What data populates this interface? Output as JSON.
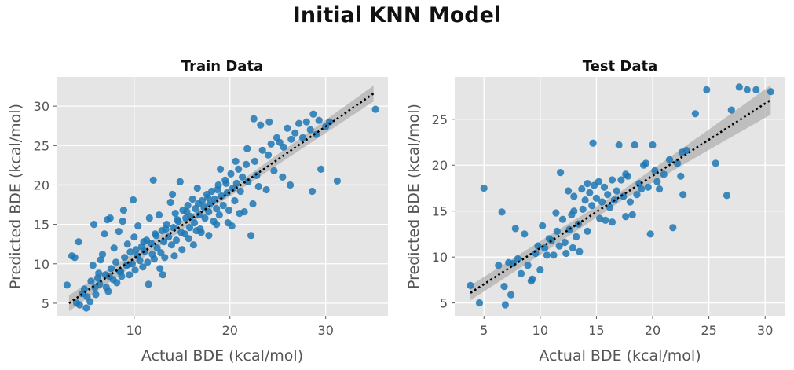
{
  "figure": {
    "title": "Initial KNN Model"
  },
  "chart_data": [
    {
      "type": "scatter",
      "title": "Train Data",
      "xlabel": "Actual BDE (kcal/mol)",
      "ylabel": "Predicted BDE (kcal/mol)",
      "xlim": [
        1.9,
        36.5
      ],
      "ylim": [
        3.4,
        33.7
      ],
      "xticks": [
        10,
        20,
        30
      ],
      "yticks": [
        5,
        10,
        15,
        20,
        25,
        30
      ],
      "grid": true,
      "regression": {
        "x0": 3.2,
        "y0": 5.0,
        "x1": 35.0,
        "y1": 31.6,
        "ci_start": 1.0,
        "ci_end": 1.0
      },
      "colors": {
        "points": "#1f77b4",
        "line": "#000000",
        "band": "#b0b0b0",
        "background": "#e5e5e5"
      },
      "points": [
        [
          3.0,
          7.3
        ],
        [
          3.5,
          11.0
        ],
        [
          3.8,
          10.8
        ],
        [
          4.0,
          5.0
        ],
        [
          4.2,
          12.8
        ],
        [
          4.3,
          4.8
        ],
        [
          4.6,
          6.2
        ],
        [
          4.8,
          6.8
        ],
        [
          5.0,
          4.4
        ],
        [
          5.1,
          5.8
        ],
        [
          5.4,
          5.2
        ],
        [
          5.5,
          7.8
        ],
        [
          5.7,
          9.8
        ],
        [
          5.8,
          15.0
        ],
        [
          6.0,
          6.1
        ],
        [
          6.2,
          8.2
        ],
        [
          6.4,
          7.4
        ],
        [
          6.5,
          10.5
        ],
        [
          6.7,
          11.2
        ],
        [
          6.9,
          13.8
        ],
        [
          7.0,
          8.6
        ],
        [
          7.1,
          7.0
        ],
        [
          7.3,
          6.5
        ],
        [
          7.5,
          15.8
        ],
        [
          7.6,
          9.4
        ],
        [
          7.8,
          8.0
        ],
        [
          7.9,
          12.0
        ],
        [
          8.1,
          10.2
        ],
        [
          8.2,
          7.6
        ],
        [
          8.4,
          14.1
        ],
        [
          8.5,
          9.0
        ],
        [
          8.7,
          8.4
        ],
        [
          8.9,
          16.8
        ],
        [
          9.0,
          10.8
        ],
        [
          9.2,
          9.8
        ],
        [
          9.3,
          12.5
        ],
        [
          9.5,
          8.6
        ],
        [
          9.6,
          11.5
        ],
        [
          9.8,
          10.0
        ],
        [
          10.0,
          13.4
        ],
        [
          10.1,
          9.2
        ],
        [
          10.3,
          11.0
        ],
        [
          10.4,
          14.8
        ],
        [
          10.6,
          10.4
        ],
        [
          10.8,
          12.2
        ],
        [
          10.9,
          9.6
        ],
        [
          11.1,
          11.6
        ],
        [
          11.3,
          13.0
        ],
        [
          11.4,
          10.2
        ],
        [
          11.6,
          15.8
        ],
        [
          11.8,
          12.6
        ],
        [
          11.9,
          11.2
        ],
        [
          12.1,
          10.6
        ],
        [
          12.3,
          13.6
        ],
        [
          12.4,
          12.0
        ],
        [
          12.6,
          16.2
        ],
        [
          12.8,
          11.4
        ],
        [
          12.9,
          14.2
        ],
        [
          13.1,
          12.8
        ],
        [
          13.2,
          10.8
        ],
        [
          13.4,
          15.0
        ],
        [
          13.6,
          13.4
        ],
        [
          13.8,
          17.8
        ],
        [
          13.9,
          12.4
        ],
        [
          14.1,
          14.6
        ],
        [
          14.3,
          16.4
        ],
        [
          14.4,
          13.0
        ],
        [
          14.6,
          15.4
        ],
        [
          14.8,
          20.4
        ],
        [
          14.9,
          14.0
        ],
        [
          15.1,
          16.8
        ],
        [
          15.3,
          13.8
        ],
        [
          15.4,
          15.8
        ],
        [
          15.6,
          17.4
        ],
        [
          15.8,
          14.6
        ],
        [
          15.9,
          16.0
        ],
        [
          16.1,
          18.2
        ],
        [
          16.3,
          15.2
        ],
        [
          16.4,
          17.0
        ],
        [
          16.6,
          19.6
        ],
        [
          16.8,
          16.2
        ],
        [
          16.9,
          14.4
        ],
        [
          17.1,
          18.0
        ],
        [
          17.3,
          17.2
        ],
        [
          17.4,
          15.8
        ],
        [
          17.6,
          18.8
        ],
        [
          17.8,
          16.6
        ],
        [
          17.9,
          17.6
        ],
        [
          18.1,
          19.2
        ],
        [
          18.3,
          15.4
        ],
        [
          18.4,
          18.2
        ],
        [
          18.6,
          17.0
        ],
        [
          18.8,
          20.0
        ],
        [
          18.9,
          16.2
        ],
        [
          19.1,
          18.6
        ],
        [
          19.3,
          17.4
        ],
        [
          19.5,
          20.6
        ],
        [
          19.7,
          19.0
        ],
        [
          19.9,
          16.8
        ],
        [
          20.1,
          21.4
        ],
        [
          20.3,
          19.6
        ],
        [
          20.5,
          18.0
        ],
        [
          20.7,
          20.2
        ],
        [
          20.9,
          22.0
        ],
        [
          21.1,
          19.2
        ],
        [
          21.3,
          21.0
        ],
        [
          21.5,
          16.6
        ],
        [
          21.7,
          22.6
        ],
        [
          21.9,
          20.4
        ],
        [
          22.2,
          13.6
        ],
        [
          22.4,
          17.6
        ],
        [
          22.6,
          23.0
        ],
        [
          22.8,
          21.2
        ],
        [
          23.0,
          19.8
        ],
        [
          23.4,
          24.4
        ],
        [
          23.8,
          19.4
        ],
        [
          24.0,
          23.8
        ],
        [
          24.3,
          25.2
        ],
        [
          24.6,
          21.8
        ],
        [
          24.9,
          26.0
        ],
        [
          25.2,
          25.4
        ],
        [
          25.6,
          24.8
        ],
        [
          26.0,
          27.2
        ],
        [
          26.4,
          25.8
        ],
        [
          26.8,
          26.6
        ],
        [
          27.2,
          27.8
        ],
        [
          27.6,
          26.0
        ],
        [
          28.0,
          28.0
        ],
        [
          28.4,
          27.0
        ],
        [
          28.7,
          29.0
        ],
        [
          29.0,
          26.4
        ],
        [
          29.3,
          28.2
        ],
        [
          29.5,
          22.0
        ],
        [
          30.0,
          27.4
        ],
        [
          30.4,
          28.0
        ],
        [
          22.5,
          28.4
        ],
        [
          23.2,
          27.6
        ],
        [
          24.1,
          28.0
        ],
        [
          25.5,
          21.0
        ],
        [
          26.3,
          20.0
        ],
        [
          28.6,
          19.2
        ],
        [
          31.2,
          20.5
        ],
        [
          35.2,
          29.6
        ],
        [
          20.6,
          23.0
        ],
        [
          21.8,
          24.6
        ],
        [
          17.8,
          13.6
        ],
        [
          16.5,
          14.2
        ],
        [
          14.0,
          18.8
        ],
        [
          12.0,
          20.6
        ],
        [
          9.9,
          18.1
        ],
        [
          8.8,
          15.4
        ],
        [
          7.2,
          15.6
        ],
        [
          11.5,
          7.4
        ],
        [
          13.0,
          8.6
        ],
        [
          15.0,
          11.8
        ],
        [
          16.2,
          12.4
        ],
        [
          18.6,
          15.0
        ],
        [
          19.8,
          15.2
        ],
        [
          20.2,
          14.8
        ],
        [
          6.3,
          8.8
        ],
        [
          5.9,
          7.0
        ],
        [
          7.4,
          8.4
        ],
        [
          8.6,
          9.0
        ],
        [
          9.4,
          9.9
        ],
        [
          10.2,
          11.8
        ],
        [
          11.0,
          12.8
        ],
        [
          12.2,
          13.8
        ],
        [
          13.3,
          14.4
        ],
        [
          14.5,
          15.6
        ],
        [
          15.5,
          16.6
        ],
        [
          16.7,
          17.6
        ],
        [
          17.7,
          18.4
        ],
        [
          18.7,
          19.4
        ],
        [
          19.6,
          20.2
        ],
        [
          12.7,
          9.4
        ],
        [
          14.2,
          11.0
        ],
        [
          15.7,
          13.2
        ],
        [
          17.0,
          14.0
        ],
        [
          21.0,
          16.4
        ],
        [
          19.0,
          22.0
        ]
      ]
    },
    {
      "type": "scatter",
      "title": "Test Data",
      "xlabel": "Actual BDE (kcal/mol)",
      "ylabel": "Predicted BDE (kcal/mol)",
      "xlim": [
        2.4,
        31.8
      ],
      "ylim": [
        3.6,
        29.6
      ],
      "xticks": [
        5,
        10,
        15,
        20,
        25,
        30
      ],
      "yticks": [
        5,
        10,
        15,
        20,
        25
      ],
      "grid": true,
      "regression": {
        "x0": 3.8,
        "y0": 6.1,
        "x1": 30.5,
        "y1": 27.1,
        "ci_start": 0.8,
        "ci_end": 1.6
      },
      "colors": {
        "points": "#1f77b4",
        "line": "#000000",
        "band": "#b0b0b0",
        "background": "#e5e5e5"
      },
      "points": [
        [
          3.8,
          6.9
        ],
        [
          4.6,
          5.0
        ],
        [
          5.0,
          17.5
        ],
        [
          6.3,
          9.1
        ],
        [
          6.6,
          14.9
        ],
        [
          6.8,
          6.8
        ],
        [
          6.9,
          4.8
        ],
        [
          7.2,
          9.4
        ],
        [
          7.4,
          5.9
        ],
        [
          7.6,
          9.3
        ],
        [
          7.8,
          13.1
        ],
        [
          8.0,
          9.8
        ],
        [
          8.3,
          8.2
        ],
        [
          8.6,
          12.5
        ],
        [
          8.9,
          9.1
        ],
        [
          9.2,
          7.4
        ],
        [
          9.3,
          7.6
        ],
        [
          9.6,
          10.4
        ],
        [
          9.8,
          11.2
        ],
        [
          10.0,
          8.6
        ],
        [
          10.2,
          13.4
        ],
        [
          10.4,
          11.0
        ],
        [
          10.6,
          10.2
        ],
        [
          10.8,
          12.0
        ],
        [
          11.0,
          11.8
        ],
        [
          11.2,
          10.2
        ],
        [
          11.4,
          14.8
        ],
        [
          11.5,
          12.8
        ],
        [
          11.7,
          11.2
        ],
        [
          11.8,
          19.2
        ],
        [
          12.0,
          14.1
        ],
        [
          12.2,
          11.6
        ],
        [
          12.3,
          10.4
        ],
        [
          12.5,
          17.2
        ],
        [
          12.6,
          13.0
        ],
        [
          12.8,
          14.6
        ],
        [
          12.9,
          11.0
        ],
        [
          13.0,
          16.6
        ],
        [
          13.2,
          12.2
        ],
        [
          13.4,
          13.6
        ],
        [
          13.5,
          10.6
        ],
        [
          13.7,
          17.4
        ],
        [
          13.8,
          15.2
        ],
        [
          14.0,
          16.2
        ],
        [
          14.2,
          12.8
        ],
        [
          14.4,
          17.0
        ],
        [
          14.6,
          15.6
        ],
        [
          14.7,
          22.4
        ],
        [
          14.8,
          17.8
        ],
        [
          15.0,
          16.4
        ],
        [
          15.2,
          18.2
        ],
        [
          15.3,
          14.2
        ],
        [
          15.5,
          16.0
        ],
        [
          15.7,
          17.6
        ],
        [
          15.8,
          14.0
        ],
        [
          16.0,
          16.8
        ],
        [
          16.2,
          15.4
        ],
        [
          16.4,
          13.8
        ],
        [
          16.6,
          16.2
        ],
        [
          16.8,
          17.2
        ],
        [
          17.0,
          22.2
        ],
        [
          17.2,
          18.4
        ],
        [
          17.4,
          16.6
        ],
        [
          17.6,
          14.4
        ],
        [
          17.8,
          18.8
        ],
        [
          18.0,
          16.0
        ],
        [
          18.2,
          14.6
        ],
        [
          18.4,
          22.2
        ],
        [
          18.6,
          16.8
        ],
        [
          18.8,
          18.0
        ],
        [
          19.0,
          17.4
        ],
        [
          19.2,
          20.0
        ],
        [
          19.4,
          20.2
        ],
        [
          19.6,
          17.6
        ],
        [
          19.8,
          12.5
        ],
        [
          20.0,
          22.2
        ],
        [
          20.2,
          19.4
        ],
        [
          20.4,
          18.2
        ],
        [
          20.6,
          17.4
        ],
        [
          21.0,
          19.0
        ],
        [
          21.5,
          20.6
        ],
        [
          21.8,
          13.2
        ],
        [
          22.2,
          20.2
        ],
        [
          22.5,
          18.8
        ],
        [
          22.7,
          16.8
        ],
        [
          23.0,
          21.6
        ],
        [
          23.8,
          25.6
        ],
        [
          24.8,
          28.2
        ],
        [
          25.6,
          20.2
        ],
        [
          26.6,
          16.7
        ],
        [
          27.0,
          26.0
        ],
        [
          27.7,
          28.5
        ],
        [
          28.4,
          28.2
        ],
        [
          29.2,
          28.2
        ],
        [
          30.5,
          28.0
        ],
        [
          22.6,
          21.4
        ],
        [
          14.2,
          18.0
        ],
        [
          13.0,
          15.0
        ],
        [
          16.4,
          18.4
        ],
        [
          17.6,
          19.0
        ]
      ]
    }
  ]
}
